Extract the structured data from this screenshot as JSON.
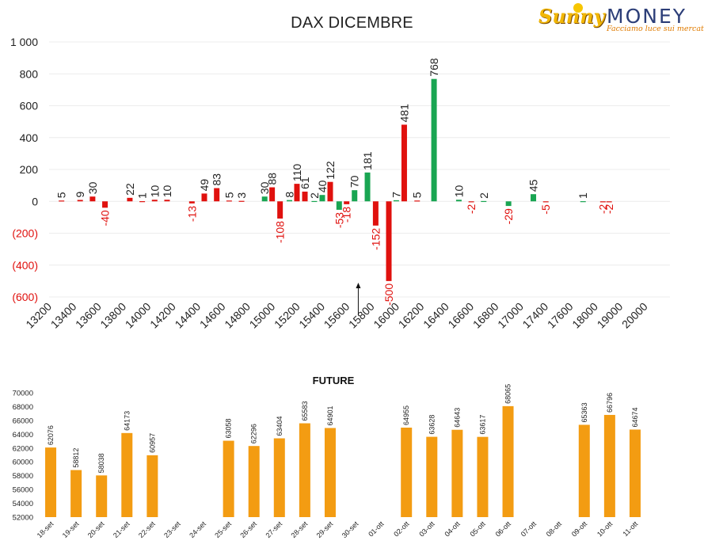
{
  "logo": {
    "brand_left": "Sunny",
    "brand_right": "MONEY",
    "tagline": "Facciamo luce sui mercati"
  },
  "colors": {
    "positive": "#19a552",
    "negative": "#e0110e",
    "future_bar": "#f39c12",
    "text": "#222222",
    "negative_tick": "#e0110e"
  },
  "chart_data": [
    {
      "type": "bar",
      "title": "DAX DICEMBRE",
      "xlabel": "",
      "ylabel": "",
      "ylim": [
        -600,
        1000
      ],
      "y_ticks": [
        {
          "value": 1000,
          "label": "1 000"
        },
        {
          "value": 800,
          "label": "800"
        },
        {
          "value": 600,
          "label": "600"
        },
        {
          "value": 400,
          "label": "400"
        },
        {
          "value": 200,
          "label": "200"
        },
        {
          "value": 0,
          "label": "0"
        },
        {
          "value": -200,
          "label": "(200)"
        },
        {
          "value": -400,
          "label": "(400)"
        },
        {
          "value": -600,
          "label": "(600)"
        }
      ],
      "categories": [
        "13200",
        "13400",
        "13600",
        "13800",
        "14000",
        "14200",
        "14400",
        "14600",
        "14800",
        "15000",
        "15200",
        "15400",
        "15600",
        "15800",
        "16000",
        "16200",
        "16400",
        "16600",
        "16800",
        "17000",
        "17400",
        "17600",
        "18000",
        "19000",
        "20000"
      ],
      "series": [
        {
          "name": "",
          "color": "green",
          "values": [
            0,
            0,
            0,
            0,
            0,
            0,
            0,
            0,
            0,
            30,
            0,
            2,
            -53,
            70,
            7,
            768,
            10,
            2,
            -29,
            45,
            0,
            1,
            0,
            0,
            0
          ]
        },
        {
          "name": "",
          "color": "red",
          "values": [
            5,
            9,
            -40,
            22,
            10,
            -13,
            83,
            3,
            88,
            -108,
            61,
            40,
            -18,
            181,
            5,
            0,
            -2,
            0,
            0,
            -5,
            0,
            -2,
            0,
            0,
            0
          ]
        }
      ],
      "bars": [
        {
          "pos": 0.5,
          "value": 5,
          "color": "red",
          "label": "5"
        },
        {
          "pos": 1.25,
          "value": 9,
          "color": "red",
          "label": "9"
        },
        {
          "pos": 1.75,
          "value": 30,
          "color": "red",
          "label": "30"
        },
        {
          "pos": 2.25,
          "value": -40,
          "color": "red",
          "label": "-40"
        },
        {
          "pos": 3.25,
          "value": 22,
          "color": "red",
          "label": "22"
        },
        {
          "pos": 3.75,
          "value": 1,
          "color": "red",
          "label": "1"
        },
        {
          "pos": 4.25,
          "value": 10,
          "color": "red",
          "label": "10"
        },
        {
          "pos": 4.75,
          "value": 10,
          "color": "red",
          "label": "10"
        },
        {
          "pos": 5.75,
          "value": -13,
          "color": "red",
          "label": "-13"
        },
        {
          "pos": 6.25,
          "value": 49,
          "color": "red",
          "label": "49"
        },
        {
          "pos": 6.75,
          "value": 83,
          "color": "red",
          "label": "83"
        },
        {
          "pos": 7.25,
          "value": 5,
          "color": "red",
          "label": "5"
        },
        {
          "pos": 7.75,
          "value": 3,
          "color": "red",
          "label": "3"
        },
        {
          "pos": 8.68,
          "value": 30,
          "color": "green",
          "label": "30"
        },
        {
          "pos": 8.98,
          "value": 88,
          "color": "red",
          "label": "88"
        },
        {
          "pos": 9.3,
          "value": -108,
          "color": "red",
          "label": "-108"
        },
        {
          "pos": 9.68,
          "value": 8,
          "color": "green",
          "label": "8"
        },
        {
          "pos": 9.98,
          "value": 110,
          "color": "red",
          "label": "110"
        },
        {
          "pos": 10.3,
          "value": 61,
          "color": "red",
          "label": "61"
        },
        {
          "pos": 10.68,
          "value": 2,
          "color": "green",
          "label": "2"
        },
        {
          "pos": 11.0,
          "value": 40,
          "color": "green",
          "label": "40"
        },
        {
          "pos": 11.32,
          "value": 122,
          "color": "red",
          "label": "122"
        },
        {
          "pos": 11.68,
          "value": -53,
          "color": "green",
          "label": "-53"
        },
        {
          "pos": 11.98,
          "value": -18,
          "color": "red",
          "label": "-18"
        },
        {
          "pos": 12.3,
          "value": 70,
          "color": "green",
          "label": "70"
        },
        {
          "pos": 12.82,
          "value": 181,
          "color": "green",
          "label": "181"
        },
        {
          "pos": 13.15,
          "value": -152,
          "color": "red",
          "label": "-152"
        },
        {
          "pos": 13.68,
          "value": -500,
          "color": "red",
          "label": "-500"
        },
        {
          "pos": 13.98,
          "value": 7,
          "color": "green",
          "label": "7"
        },
        {
          "pos": 14.3,
          "value": 481,
          "color": "red",
          "label": "481"
        },
        {
          "pos": 14.82,
          "value": 5,
          "color": "red",
          "label": "5"
        },
        {
          "pos": 15.5,
          "value": 768,
          "color": "green",
          "label": "768"
        },
        {
          "pos": 16.5,
          "value": 10,
          "color": "green",
          "label": "10"
        },
        {
          "pos": 17.0,
          "value": -2,
          "color": "red",
          "label": "-2"
        },
        {
          "pos": 17.5,
          "value": 2,
          "color": "green",
          "label": "2"
        },
        {
          "pos": 18.5,
          "value": -29,
          "color": "green",
          "label": "-29"
        },
        {
          "pos": 19.5,
          "value": 45,
          "color": "green",
          "label": "45"
        },
        {
          "pos": 20.0,
          "value": -5,
          "color": "red",
          "label": "-5"
        },
        {
          "pos": 21.5,
          "value": 1,
          "color": "green",
          "label": "1"
        },
        {
          "pos": 22.3,
          "value": -2,
          "color": "red",
          "label": "-2"
        },
        {
          "pos": 22.55,
          "value": -2,
          "color": "red",
          "label": "-2"
        }
      ],
      "annotations": [
        {
          "type": "arrow",
          "at_category": "15600",
          "points_to": "up"
        }
      ]
    },
    {
      "type": "bar",
      "title": "FUTURE",
      "xlabel": "",
      "ylabel": "",
      "ylim": [
        52000,
        70000
      ],
      "y_ticks": [
        70000,
        68000,
        66000,
        64000,
        62000,
        60000,
        58000,
        56000,
        54000,
        52000
      ],
      "categories": [
        "18-set",
        "19-set",
        "20-set",
        "21-set",
        "22-set",
        "23-set",
        "24-set",
        "25-set",
        "26-set",
        "27-set",
        "28-set",
        "29-set",
        "30-set",
        "01-ott",
        "02-ott",
        "03-ott",
        "04-ott",
        "05-ott",
        "06-ott",
        "07-ott",
        "08-ott",
        "09-ott",
        "10-ott",
        "11-ott"
      ],
      "values": [
        62076,
        58812,
        58038,
        64173,
        60957,
        null,
        null,
        63058,
        62296,
        63404,
        65583,
        64901,
        null,
        null,
        64955,
        63628,
        64643,
        63617,
        68065,
        null,
        null,
        65363,
        66796,
        64674
      ]
    }
  ]
}
